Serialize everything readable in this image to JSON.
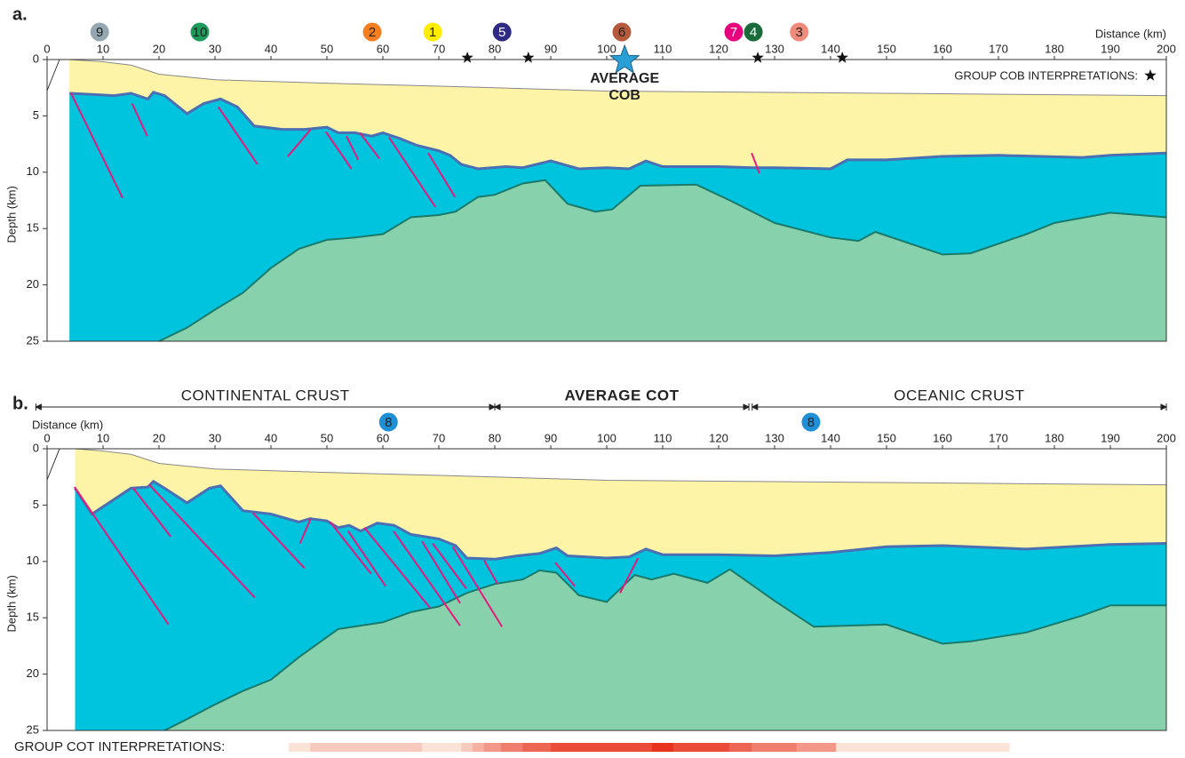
{
  "chart_data": [
    {
      "type": "section",
      "panel_label": "a.",
      "x_label": "Distance (km)",
      "x_label_position": "right",
      "y_label": "Depth (km)",
      "xlim": [
        0,
        200
      ],
      "xticks": [
        0,
        10,
        20,
        30,
        40,
        50,
        60,
        70,
        80,
        90,
        100,
        110,
        120,
        130,
        140,
        150,
        160,
        170,
        180,
        190,
        200
      ],
      "ylim": [
        0,
        25
      ],
      "yticks": [
        0,
        5,
        10,
        15,
        20,
        25
      ],
      "layers": [
        {
          "color": "#fdf4a8",
          "line_color": "#888888",
          "x": [
            4,
            10,
            15,
            20,
            30,
            50,
            80,
            100,
            150,
            200
          ],
          "depth": [
            0,
            0.2,
            0.5,
            1.3,
            1.8,
            2.1,
            2.5,
            2.8,
            3.0,
            3.2
          ]
        },
        {
          "color": "#00c3de",
          "line_color": "#4a6fb3",
          "x": [
            4,
            8,
            12,
            15,
            18,
            19,
            21,
            25,
            28,
            31,
            34,
            37,
            42,
            46,
            50,
            52,
            55,
            58,
            60,
            63,
            66,
            70,
            72,
            74,
            77,
            82,
            85,
            90,
            95,
            100,
            104,
            107,
            110,
            120,
            126,
            130,
            140,
            143,
            150,
            160,
            170,
            185,
            190,
            200
          ],
          "depth": [
            3,
            3.1,
            3.2,
            3,
            3.5,
            2.9,
            3.2,
            4.8,
            3.9,
            3.5,
            4.2,
            5.9,
            6.2,
            6.2,
            6,
            6.5,
            6.5,
            6.8,
            6.5,
            7,
            7.6,
            8.1,
            8.5,
            9.3,
            9.7,
            9.5,
            9.6,
            9,
            9.7,
            9.6,
            9.7,
            9,
            9.5,
            9.5,
            9.6,
            9.6,
            9.7,
            8.9,
            8.9,
            8.6,
            8.5,
            8.7,
            8.5,
            8.3
          ]
        },
        {
          "color": "#88d1ad",
          "line_color": "#1a7a6a",
          "x": [
            20,
            25,
            30,
            35,
            40,
            45,
            50,
            55,
            60,
            65,
            70,
            73,
            77,
            80,
            85,
            89,
            93,
            98,
            101,
            106,
            116,
            122,
            130,
            140,
            145,
            148,
            160,
            165,
            175,
            180,
            190,
            200
          ],
          "depth": [
            25,
            23.8,
            22.2,
            20.7,
            18.5,
            16.8,
            16,
            15.8,
            15.5,
            14,
            13.8,
            13.5,
            12.2,
            12,
            11,
            10.7,
            12.8,
            13.5,
            13.3,
            11.2,
            11.1,
            12.5,
            14.5,
            15.8,
            16.1,
            15.3,
            17.3,
            17.2,
            15.5,
            14.5,
            13.6,
            14
          ]
        }
      ],
      "fault_color": "#e6197e",
      "faults": [
        [
          4.3,
          3.0,
          13.5,
          12.3
        ],
        [
          15.2,
          3.9,
          17.9,
          6.8
        ],
        [
          30.6,
          4.2,
          37.6,
          9.3
        ],
        [
          43,
          8.6,
          47.1,
          6.2
        ],
        [
          49.8,
          6.4,
          54.4,
          9.7
        ],
        [
          53.5,
          6.8,
          55.6,
          8.9
        ],
        [
          55.9,
          6.5,
          59.4,
          8.8
        ],
        [
          61.1,
          6.9,
          69.4,
          13.1
        ],
        [
          68.1,
          8.3,
          72.9,
          12.2
        ],
        [
          125.9,
          8.3,
          127.3,
          10.1
        ]
      ],
      "interpretations": [
        {
          "label": "9",
          "color": "#95a8b2",
          "x": 9.4
        },
        {
          "label": "10",
          "color": "#1e9a5a",
          "x": 27.3
        },
        {
          "label": "2",
          "color": "#f57f20",
          "x": 58.1
        },
        {
          "label": "1",
          "color": "#ffed00",
          "x": 68.9
        },
        {
          "label": "5",
          "color": "#2e2a85",
          "x": 81.3
        },
        {
          "label": "6",
          "color": "#b55a3c",
          "x": 102.7
        },
        {
          "label": "7",
          "color": "#e6007e",
          "x": 122.7
        },
        {
          "label": "4",
          "color": "#1a6b3a",
          "x": 126.2
        },
        {
          "label": "3",
          "color": "#f08a7a",
          "x": 134.4
        }
      ],
      "stars": [
        75.1,
        86,
        127,
        142.1
      ],
      "star_label": "GROUP COB INTERPRETATIONS:",
      "average": {
        "x": 103.2,
        "color": "#2a9fd6",
        "label": [
          "AVERAGE",
          "COB"
        ]
      }
    },
    {
      "type": "section",
      "panel_label": "b.",
      "x_label": "Distance (km)",
      "x_label_position": "left",
      "y_label": "Depth (km)",
      "xlim": [
        0,
        200
      ],
      "xticks": [
        0,
        10,
        20,
        30,
        40,
        50,
        60,
        70,
        80,
        90,
        100,
        110,
        120,
        130,
        140,
        150,
        160,
        170,
        180,
        190,
        200
      ],
      "ylim": [
        0,
        25
      ],
      "yticks": [
        0,
        5,
        10,
        15,
        20,
        25
      ],
      "layers": [
        {
          "color": "#fdf4a8",
          "line_color": "#888888",
          "x": [
            5,
            10,
            15,
            20,
            30,
            50,
            80,
            100,
            150,
            200
          ],
          "depth": [
            0,
            0.2,
            0.5,
            1.3,
            1.8,
            2.1,
            2.5,
            2.8,
            3.0,
            3.2
          ]
        },
        {
          "color": "#00c3de",
          "line_color": "#4a6fb3",
          "x": [
            5,
            8,
            15,
            18,
            19,
            21,
            25,
            29,
            31,
            35,
            40,
            45,
            47,
            50,
            52,
            54,
            56,
            59,
            62,
            65,
            70,
            73,
            75,
            80,
            84,
            88,
            91,
            93,
            100,
            104,
            107,
            110,
            120,
            130,
            140,
            150,
            160,
            175,
            190,
            200
          ],
          "depth": [
            3.5,
            5.8,
            3.5,
            3.4,
            2.9,
            3.5,
            4.8,
            3.5,
            3.3,
            5.5,
            5.8,
            6.5,
            6.2,
            6.4,
            7,
            6.8,
            7.3,
            6.6,
            6.8,
            7.6,
            8,
            8.6,
            9.7,
            9.8,
            9.5,
            9.3,
            8.8,
            9.5,
            9.7,
            9.6,
            8.9,
            9.4,
            9.4,
            9.5,
            9.2,
            8.7,
            8.6,
            8.9,
            8.5,
            8.4
          ]
        },
        {
          "color": "#88d1ad",
          "line_color": "#1a7a6a",
          "x": [
            21,
            25,
            30,
            35,
            40,
            45,
            52,
            60,
            65,
            70,
            75,
            80,
            85,
            88,
            91,
            95,
            100,
            105,
            108,
            112,
            118,
            122,
            130,
            137,
            150,
            160,
            165,
            175,
            185,
            190,
            200
          ],
          "depth": [
            25,
            24,
            22.7,
            21.5,
            20.5,
            18.5,
            16,
            15.4,
            14.5,
            14,
            12.8,
            12,
            11.6,
            10.8,
            11,
            13,
            13.6,
            11.2,
            11.6,
            11.1,
            11.9,
            10.7,
            13.5,
            15.8,
            15.6,
            17.3,
            17.1,
            16.3,
            14.8,
            13.9,
            13.9
          ]
        }
      ],
      "fault_color": "#e6197e",
      "faults": [
        [
          4.9,
          3.4,
          21.7,
          15.6
        ],
        [
          15.4,
          3.5,
          22.1,
          7.8
        ],
        [
          18.3,
          3.2,
          37.1,
          13.2
        ],
        [
          36.8,
          5.7,
          46,
          10.6
        ],
        [
          45.2,
          8.4,
          47.1,
          6.2
        ],
        [
          50.6,
          6.5,
          57.9,
          11.1
        ],
        [
          53.8,
          7.3,
          60.5,
          12.2
        ],
        [
          56.7,
          7,
          68.4,
          14.1
        ],
        [
          61.9,
          7.3,
          73.8,
          15.7
        ],
        [
          67,
          8.2,
          73.8,
          13.7
        ],
        [
          68.9,
          8.4,
          74.9,
          12.4
        ],
        [
          72.5,
          8.7,
          81.3,
          15.8
        ],
        [
          78.1,
          9.9,
          80.5,
          12.0
        ],
        [
          90.8,
          10.1,
          94.3,
          12.2
        ],
        [
          102.4,
          12.8,
          105.6,
          9.7
        ]
      ],
      "interpretations": [
        {
          "label": "8",
          "color": "#1f8fd6",
          "x": 61
        },
        {
          "label": "8",
          "color": "#1f8fd6",
          "x": 136.5
        }
      ],
      "zones": [
        {
          "label": "CONTINENTAL CRUST",
          "x": [
            -2,
            80
          ],
          "bold": false
        },
        {
          "label": "AVERAGE COT",
          "x": [
            80,
            125.4
          ],
          "bold": true
        },
        {
          "label": "OCEANIC CRUST",
          "x": [
            126,
            200
          ],
          "bold": false
        }
      ],
      "heat_label": "GROUP COT INTERPRETATIONS:",
      "heat_colors": [
        "#fbe3d8",
        "#e8331e"
      ],
      "heat_bins": [
        43.2,
        47,
        67,
        74,
        76,
        78,
        81,
        85,
        90,
        108,
        112,
        122,
        126,
        134,
        141,
        172
      ],
      "heat_counts": [
        1,
        2,
        1,
        2,
        3,
        4,
        5,
        6,
        7,
        8,
        7,
        6,
        5,
        4,
        1
      ]
    }
  ]
}
